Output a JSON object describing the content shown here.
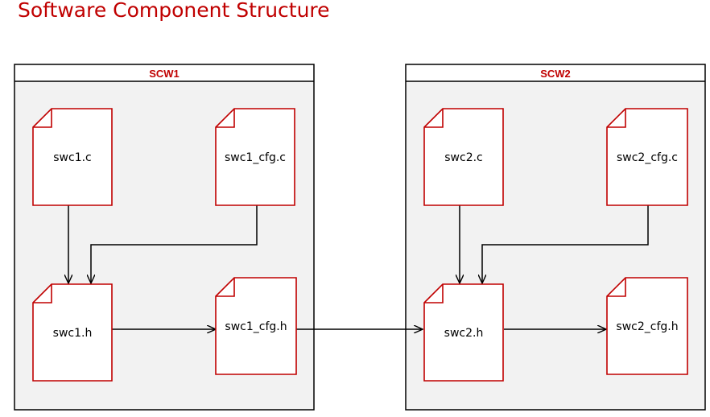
{
  "title": "Software Component Structure",
  "colors": {
    "accent": "#c00000",
    "container_fill": "#f2f2f2",
    "file_fill": "#ffffff",
    "line": "#000000"
  },
  "components": [
    {
      "id": "scw1",
      "label": "SCW1",
      "files": [
        {
          "id": "swc1-c",
          "label": "swc1.c"
        },
        {
          "id": "swc1-cfg-c",
          "label": "swc1_cfg.c"
        },
        {
          "id": "swc1-h",
          "label": "swc1.h"
        },
        {
          "id": "swc1-cfg-h",
          "label": "swc1_cfg.h"
        }
      ]
    },
    {
      "id": "scw2",
      "label": "SCW2",
      "files": [
        {
          "id": "swc2-c",
          "label": "swc2.c"
        },
        {
          "id": "swc2-cfg-c",
          "label": "swc2_cfg.c"
        },
        {
          "id": "swc2-h",
          "label": "swc2.h"
        },
        {
          "id": "swc2-cfg-h",
          "label": "swc2_cfg.h"
        }
      ]
    }
  ],
  "dependencies": [
    {
      "from": "swc1.c",
      "to": "swc1.h"
    },
    {
      "from": "swc1_cfg.c",
      "to": "swc1.h"
    },
    {
      "from": "swc1.h",
      "to": "swc1_cfg.h"
    },
    {
      "from": "swc1_cfg.h",
      "to": "swc2.h"
    },
    {
      "from": "swc2.c",
      "to": "swc2.h"
    },
    {
      "from": "swc2_cfg.c",
      "to": "swc2.h"
    },
    {
      "from": "swc2.h",
      "to": "swc2_cfg.h"
    }
  ]
}
